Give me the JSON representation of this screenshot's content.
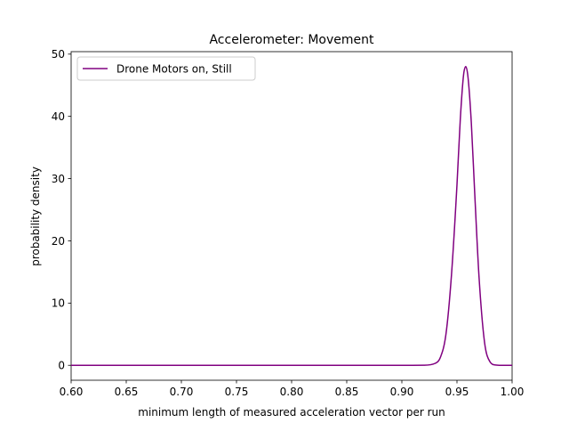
{
  "chart_data": {
    "type": "line",
    "title": "Accelerometer: Movement",
    "xlabel": "minimum length of measured acceleration vector per run",
    "ylabel": "probability density",
    "xlim": [
      0.6,
      1.0
    ],
    "ylim": [
      -2.4,
      50.4
    ],
    "xticks": [
      "0.60",
      "0.65",
      "0.70",
      "0.75",
      "0.80",
      "0.85",
      "0.90",
      "0.95",
      "1.00"
    ],
    "yticks": [
      "0",
      "10",
      "20",
      "30",
      "40",
      "50"
    ],
    "grid": false,
    "legend_position": "top-left",
    "series": [
      {
        "name": "Drone Motors on, Still",
        "color": "#800080",
        "x": [
          0.6,
          0.7,
          0.8,
          0.9,
          0.92,
          0.93,
          0.935,
          0.94,
          0.945,
          0.95,
          0.953,
          0.956,
          0.958,
          0.96,
          0.963,
          0.966,
          0.97,
          0.975,
          0.98,
          0.985,
          0.99,
          1.0
        ],
        "y": [
          0,
          0,
          0,
          0,
          0.02,
          0.3,
          1.3,
          5,
          14.5,
          29,
          39.5,
          46.7,
          48,
          46.3,
          39,
          28,
          14.2,
          3.7,
          0.55,
          0.05,
          0,
          0
        ]
      }
    ]
  }
}
